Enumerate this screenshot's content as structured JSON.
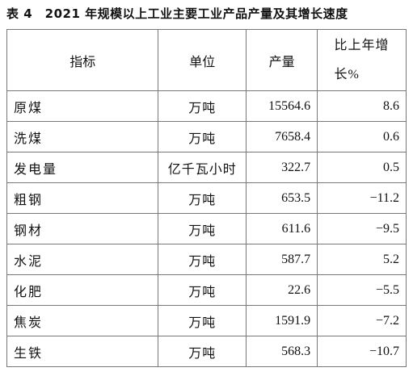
{
  "title": "表 4　2021 年规模以上工业主要工业产品产量及其增长速度",
  "table": {
    "header": [
      "指标",
      "单位",
      "产量",
      "比上年增长%"
    ],
    "rows": [
      [
        "原煤",
        "万吨",
        "15564.6",
        "8.6"
      ],
      [
        "洗煤",
        "万吨",
        "7658.4",
        "0.6"
      ],
      [
        "发电量",
        "亿千瓦小时",
        "322.7",
        "0.5"
      ],
      [
        "粗钢",
        "万吨",
        "653.5",
        "−11.2"
      ],
      [
        "钢材",
        "万吨",
        "611.6",
        "−9.5"
      ],
      [
        "水泥",
        "万吨",
        "587.7",
        "5.2"
      ],
      [
        "化肥",
        "万吨",
        "22.6",
        "−5.5"
      ],
      [
        "焦炭",
        "万吨",
        "1591.9",
        "−7.2"
      ],
      [
        "生铁",
        "万吨",
        "568.3",
        "−10.7"
      ]
    ]
  }
}
